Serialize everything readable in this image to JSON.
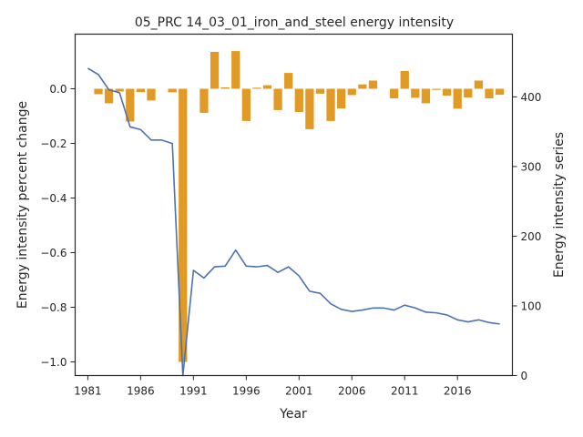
{
  "chart_data": {
    "type": "bar+line",
    "title": "05_PRC 14_03_01_iron_and_steel energy intensity",
    "xlabel": "Year",
    "ylabel_left": "Energy intensity percent change",
    "ylabel_right": "Energy intensity series",
    "xlim": [
      1979.8,
      2021.2
    ],
    "ylim_left": [
      -1.05,
      0.2
    ],
    "ylim_right": [
      0,
      490
    ],
    "x_ticks": [
      1981,
      1986,
      1991,
      1996,
      2001,
      2006,
      2011,
      2016
    ],
    "y_ticks_left": [
      0.0,
      -0.2,
      -0.4,
      -0.6,
      -0.8,
      -1.0
    ],
    "y_tick_labels_left": [
      "0.0",
      "−0.2",
      "−0.4",
      "−0.6",
      "−0.8",
      "−1.0"
    ],
    "y_ticks_right": [
      0,
      100,
      200,
      300,
      400
    ],
    "bar_color": "#e09a25",
    "line_color": "#4c72b0",
    "grid": false,
    "bars": {
      "name": "Energy intensity percent change",
      "x": [
        1982,
        1983,
        1984,
        1985,
        1986,
        1987,
        1988,
        1989,
        1990,
        1991,
        1992,
        1993,
        1994,
        1995,
        1996,
        1997,
        1998,
        1999,
        2000,
        2001,
        2002,
        2003,
        2004,
        2005,
        2006,
        2007,
        2008,
        2009,
        2010,
        2011,
        2012,
        2013,
        2014,
        2015,
        2016,
        2017,
        2018,
        2019,
        2020
      ],
      "values": [
        -0.02,
        -0.053,
        -0.01,
        -0.12,
        -0.012,
        -0.043,
        0.0,
        -0.013,
        -1.0,
        0.0,
        -0.088,
        0.135,
        0.005,
        0.138,
        -0.118,
        0.004,
        0.013,
        -0.078,
        0.058,
        -0.085,
        -0.148,
        -0.018,
        -0.118,
        -0.072,
        -0.023,
        0.016,
        0.03,
        0.0,
        -0.035,
        0.065,
        -0.033,
        -0.053,
        -0.004,
        -0.025,
        -0.073,
        -0.032,
        0.03,
        -0.035,
        -0.022
      ]
    },
    "series": [
      {
        "name": "Energy intensity series",
        "axis": "right",
        "x": [
          1981,
          1982,
          1983,
          1984,
          1985,
          1986,
          1987,
          1988,
          1989,
          1990,
          1991,
          1992,
          1993,
          1994,
          1995,
          1996,
          1997,
          1998,
          1999,
          2000,
          2001,
          2002,
          2003,
          2004,
          2005,
          2006,
          2007,
          2008,
          2009,
          2010,
          2011,
          2012,
          2013,
          2014,
          2015,
          2016,
          2017,
          2018,
          2019,
          2020
        ],
        "values": [
          441,
          432,
          410,
          406,
          357,
          353,
          338,
          338,
          333,
          0,
          151,
          140,
          156,
          157,
          180,
          157,
          156,
          158,
          148,
          156,
          143,
          121,
          118,
          103,
          95,
          92,
          94,
          97,
          97,
          94,
          101,
          97,
          91,
          90,
          87,
          80,
          77,
          80,
          76,
          74
        ]
      }
    ]
  }
}
